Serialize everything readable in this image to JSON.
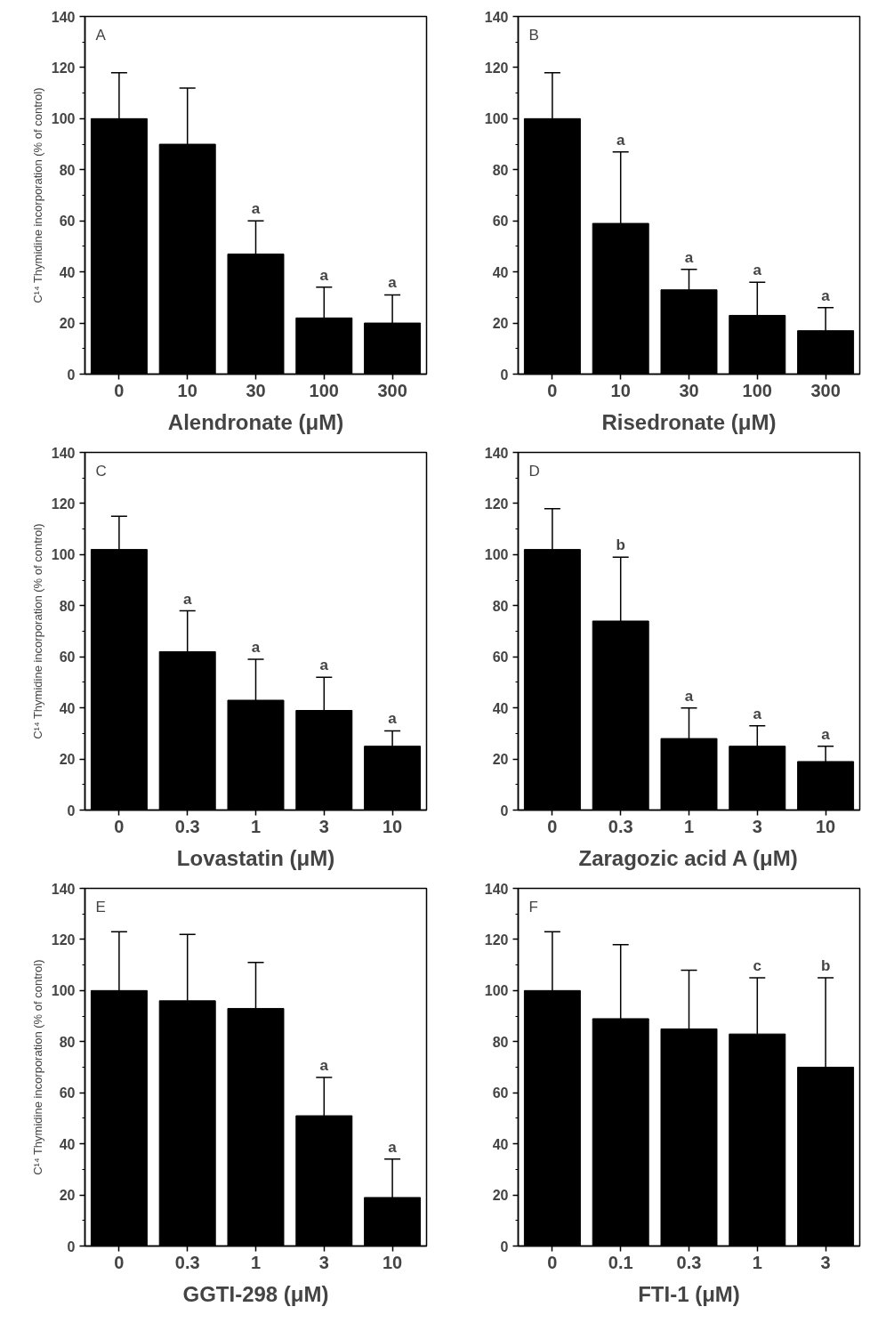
{
  "chart_data": [
    {
      "type": "bar",
      "ylabel": "C¹⁴ Thymidine incorporation (% of control)",
      "xlabel": "Alendronate (μM)",
      "categories": [
        "0",
        "10",
        "30",
        "100",
        "300"
      ],
      "color": "#000000",
      "values": [
        100,
        90,
        47,
        22,
        20
      ],
      "errors": [
        [
          100,
          118
        ],
        [
          90,
          112
        ],
        [
          47,
          60
        ],
        [
          22,
          34
        ],
        [
          20,
          31
        ]
      ],
      "ylim": [
        0,
        140
      ],
      "yticks": [
        0,
        20,
        40,
        60,
        80,
        100,
        120,
        140
      ],
      "grid": false,
      "annotations": [
        "A",
        {
          "text": "a",
          "x": "30",
          "y": 60
        },
        {
          "text": "a",
          "x": "100",
          "y": 34
        },
        {
          "text": "a",
          "x": "300",
          "y": 31
        }
      ]
    },
    {
      "type": "bar",
      "xlabel": "Risedronate (μM)",
      "categories": [
        "0",
        "10",
        "30",
        "100",
        "300"
      ],
      "color": "#000000",
      "values": [
        100,
        59,
        33,
        23,
        17
      ],
      "errors": [
        [
          100,
          118
        ],
        [
          59,
          87
        ],
        [
          33,
          41
        ],
        [
          23,
          36
        ],
        [
          17,
          26
        ]
      ],
      "ylim": [
        0,
        140
      ],
      "yticks": [
        0,
        20,
        40,
        60,
        80,
        100,
        120,
        140
      ],
      "grid": false,
      "annotations": [
        "B",
        {
          "text": "a",
          "x": "10",
          "y": 87
        },
        {
          "text": "a",
          "x": "30",
          "y": 41
        },
        {
          "text": "a",
          "x": "100",
          "y": 36
        },
        {
          "text": "a",
          "x": "300",
          "y": 26
        }
      ]
    },
    {
      "type": "bar",
      "ylabel": "C¹⁴ Thymidine incorporation (% of control)",
      "xlabel": "Lovastatin (μM)",
      "categories": [
        "0",
        "0.3",
        "1",
        "3",
        "10"
      ],
      "color": "#000000",
      "values": [
        102,
        62,
        43,
        39,
        25
      ],
      "errors": [
        [
          102,
          115
        ],
        [
          62,
          78
        ],
        [
          43,
          59
        ],
        [
          39,
          52
        ],
        [
          25,
          31
        ]
      ],
      "ylim": [
        0,
        140
      ],
      "yticks": [
        0,
        20,
        40,
        60,
        80,
        100,
        120,
        140
      ],
      "grid": false,
      "annotations": [
        "C",
        {
          "text": "a",
          "x": "0.3",
          "y": 78
        },
        {
          "text": "a",
          "x": "1",
          "y": 59
        },
        {
          "text": "a",
          "x": "3",
          "y": 52
        },
        {
          "text": "a",
          "x": "10",
          "y": 31
        }
      ]
    },
    {
      "type": "bar",
      "xlabel": "Zaragozic acid A (μM)",
      "categories": [
        "0",
        "0.3",
        "1",
        "3",
        "10"
      ],
      "color": "#000000",
      "values": [
        102,
        74,
        28,
        25,
        19
      ],
      "errors": [
        [
          102,
          118
        ],
        [
          74,
          99
        ],
        [
          28,
          40
        ],
        [
          25,
          33
        ],
        [
          19,
          25
        ]
      ],
      "ylim": [
        0,
        140
      ],
      "yticks": [
        0,
        20,
        40,
        60,
        80,
        100,
        120,
        140
      ],
      "grid": false,
      "annotations": [
        "D",
        {
          "text": "b",
          "x": "0.3",
          "y": 99
        },
        {
          "text": "a",
          "x": "1",
          "y": 40
        },
        {
          "text": "a",
          "x": "3",
          "y": 33
        },
        {
          "text": "a",
          "x": "10",
          "y": 25
        }
      ]
    },
    {
      "type": "bar",
      "ylabel": "C¹⁴ Thymidine incorporation (% of control)",
      "xlabel": "GGTI-298 (μM)",
      "categories": [
        "0",
        "0.3",
        "1",
        "3",
        "10"
      ],
      "color": "#000000",
      "values": [
        100,
        96,
        93,
        51,
        19
      ],
      "errors": [
        [
          100,
          123
        ],
        [
          96,
          122
        ],
        [
          93,
          111
        ],
        [
          51,
          66
        ],
        [
          19,
          34
        ]
      ],
      "ylim": [
        0,
        140
      ],
      "yticks": [
        0,
        20,
        40,
        60,
        80,
        100,
        120,
        140
      ],
      "grid": false,
      "annotations": [
        "E",
        {
          "text": "a",
          "x": "3",
          "y": 66
        },
        {
          "text": "a",
          "x": "10",
          "y": 34
        }
      ]
    },
    {
      "type": "bar",
      "xlabel": "FTI-1 (μM)",
      "categories": [
        "0",
        "0.1",
        "0.3",
        "1",
        "3"
      ],
      "color": "#000000",
      "values": [
        100,
        89,
        85,
        83,
        70
      ],
      "errors": [
        [
          100,
          123
        ],
        [
          89,
          118
        ],
        [
          85,
          108
        ],
        [
          83,
          105
        ],
        [
          70,
          105
        ]
      ],
      "ylim": [
        0,
        140
      ],
      "yticks": [
        0,
        20,
        40,
        60,
        80,
        100,
        120,
        140
      ],
      "grid": false,
      "annotations": [
        "F",
        {
          "text": "c",
          "x": "1",
          "y": 105
        },
        {
          "text": "b",
          "x": "3",
          "y": 105
        }
      ]
    }
  ]
}
